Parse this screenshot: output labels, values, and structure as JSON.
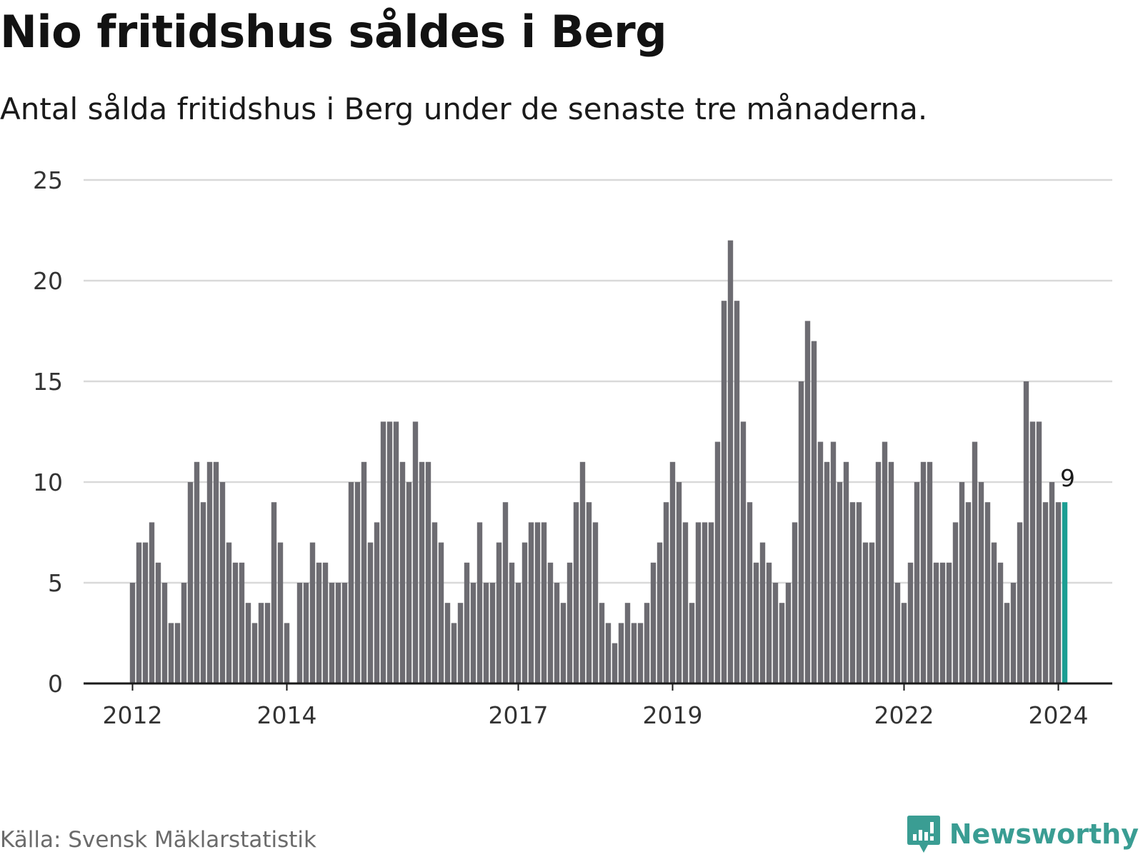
{
  "title": "Nio fritidshus såldes i Berg",
  "subtitle": "Antal sålda fritidshus i Berg under de senaste tre månaderna.",
  "source": "Källa: Svensk Mäklarstatistik",
  "brand": {
    "name": "Newsworthy",
    "icon": "newsworthy-logo-icon"
  },
  "colors": {
    "bar": "#6d6c72",
    "highlight": "#1c9e93",
    "grid": "#d9d9d9",
    "axis": "#1a1a1a",
    "brand": "#3a9d93"
  },
  "chart_data": {
    "type": "bar",
    "title": "Nio fritidshus såldes i Berg",
    "xlabel": "",
    "ylabel": "",
    "ylim": [
      0,
      25
    ],
    "yticks": [
      0,
      5,
      10,
      15,
      20,
      25
    ],
    "xticks": [
      {
        "label": "2012",
        "index": 0
      },
      {
        "label": "2014",
        "index": 24
      },
      {
        "label": "2017",
        "index": 60
      },
      {
        "label": "2019",
        "index": 84
      },
      {
        "label": "2022",
        "index": 120
      },
      {
        "label": "2024",
        "index": 144
      }
    ],
    "first_month": "2012-01",
    "values": [
      5,
      7,
      7,
      8,
      6,
      5,
      3,
      3,
      5,
      10,
      11,
      9,
      11,
      11,
      10,
      7,
      6,
      6,
      4,
      3,
      4,
      4,
      9,
      7,
      3,
      0,
      5,
      5,
      7,
      6,
      6,
      5,
      5,
      5,
      10,
      10,
      11,
      7,
      8,
      13,
      13,
      13,
      11,
      10,
      13,
      11,
      11,
      8,
      7,
      4,
      3,
      4,
      6,
      5,
      8,
      5,
      5,
      7,
      9,
      6,
      5,
      7,
      8,
      8,
      8,
      6,
      5,
      4,
      6,
      9,
      11,
      9,
      8,
      4,
      3,
      2,
      3,
      4,
      3,
      3,
      4,
      6,
      7,
      9,
      11,
      10,
      8,
      4,
      8,
      8,
      8,
      12,
      19,
      22,
      19,
      13,
      9,
      6,
      7,
      6,
      5,
      4,
      5,
      8,
      15,
      18,
      17,
      12,
      11,
      12,
      10,
      11,
      9,
      9,
      7,
      7,
      11,
      12,
      11,
      5,
      4,
      6,
      10,
      11,
      11,
      6,
      6,
      6,
      8,
      10,
      9,
      12,
      10,
      9,
      7,
      6,
      4,
      5,
      8,
      15,
      13,
      13,
      9,
      10,
      9,
      9
    ],
    "highlight_index": 145,
    "highlight_label": "9"
  }
}
